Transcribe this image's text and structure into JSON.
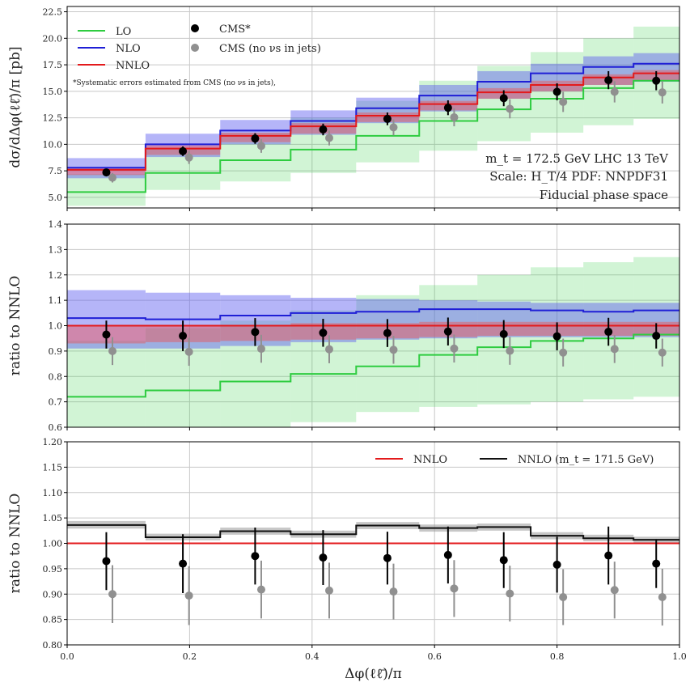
{
  "chart_data": [
    {
      "type": "line",
      "panel": "top",
      "ylabel": "dσ/dΔφ(ℓℓ̄)/π [pb]",
      "ylim": [
        4.0,
        23.0
      ],
      "yticks": [
        5.0,
        7.5,
        10.0,
        12.5,
        15.0,
        17.5,
        20.0,
        22.5
      ],
      "ytick_labels": [
        "5.0",
        "7.5",
        "10.0",
        "12.5",
        "15.0",
        "17.5",
        "20.0",
        "22.5"
      ],
      "grid": true,
      "legend_position": "top-left",
      "legend": {
        "lo": "LO",
        "nlo": "NLO",
        "nnlo": "NNLO",
        "cms_star": "CMS*",
        "cms_nonu": "CMS (no νs in jets)"
      },
      "note": "*Systematic errors estimated from CMS (no νs in jets),",
      "annotations": {
        "line1": "m_t = 172.5 GeV LHC 13 TeV",
        "line2": "Scale: H_T/4 PDF: NNPDF31",
        "line3": "Fiducial phase space"
      },
      "bin_edges": [
        0.0,
        0.128,
        0.25,
        0.365,
        0.472,
        0.575,
        0.67,
        0.757,
        0.843,
        0.925,
        1.0
      ],
      "series": [
        {
          "key": "lo",
          "color": "#2ecc40",
          "band_color": "#2ecc40",
          "values": [
            5.5,
            7.3,
            8.5,
            9.5,
            10.8,
            12.2,
            13.3,
            14.3,
            15.3,
            16.0
          ],
          "band_low": [
            4.2,
            5.7,
            6.5,
            7.3,
            8.3,
            9.4,
            10.3,
            11.1,
            11.8,
            12.4
          ],
          "band_high": [
            7.2,
            9.6,
            11.1,
            12.5,
            14.1,
            16.0,
            17.4,
            18.7,
            20.0,
            21.1
          ]
        },
        {
          "key": "nlo",
          "color": "#1f1fd6",
          "band_color": "#5b5bf0",
          "values": [
            7.8,
            10.0,
            11.3,
            12.2,
            13.4,
            14.6,
            15.9,
            16.7,
            17.3,
            17.6
          ],
          "band_low": [
            6.8,
            8.8,
            10.0,
            10.9,
            12.0,
            13.1,
            14.3,
            15.0,
            15.6,
            15.9
          ],
          "band_high": [
            8.7,
            11.0,
            12.3,
            13.2,
            14.4,
            15.6,
            16.9,
            17.6,
            18.3,
            18.6
          ]
        },
        {
          "key": "nnlo",
          "color": "#e31a1c",
          "band_color": "#f05050",
          "values": [
            7.6,
            9.6,
            10.8,
            11.7,
            12.7,
            13.8,
            14.9,
            15.6,
            16.3,
            16.7
          ],
          "band_low": [
            7.1,
            9.0,
            10.2,
            11.0,
            12.1,
            13.2,
            14.3,
            15.0,
            15.6,
            16.0
          ],
          "band_high": [
            7.8,
            9.9,
            11.1,
            12.0,
            13.0,
            14.1,
            15.3,
            16.0,
            16.6,
            17.0
          ]
        }
      ],
      "points": [
        {
          "key": "cms_star",
          "color": "#000000",
          "x": [
            0.064,
            0.189,
            0.307,
            0.418,
            0.523,
            0.622,
            0.713,
            0.8,
            0.884,
            0.962
          ],
          "y": [
            7.35,
            9.35,
            10.55,
            11.4,
            12.4,
            13.45,
            14.35,
            14.95,
            16.05,
            16.0
          ],
          "err": [
            0.35,
            0.45,
            0.5,
            0.55,
            0.6,
            0.7,
            0.75,
            0.8,
            0.85,
            0.9
          ]
        },
        {
          "key": "cms_nonu",
          "color": "#909090",
          "x": [
            0.074,
            0.199,
            0.317,
            0.428,
            0.533,
            0.632,
            0.723,
            0.81,
            0.894,
            0.972
          ],
          "y": [
            6.85,
            8.75,
            9.85,
            10.6,
            11.6,
            12.55,
            13.35,
            14.0,
            14.95,
            14.9
          ],
          "err": [
            0.45,
            0.6,
            0.65,
            0.7,
            0.75,
            0.85,
            0.9,
            0.95,
            1.0,
            1.05
          ]
        }
      ]
    },
    {
      "type": "line",
      "panel": "middle",
      "ylabel": "ratio to NNLO",
      "ylim": [
        0.6,
        1.4
      ],
      "yticks": [
        0.6,
        0.7,
        0.8,
        0.9,
        1.0,
        1.1,
        1.2,
        1.3,
        1.4
      ],
      "ytick_labels": [
        "0.6",
        "0.7",
        "0.8",
        "0.9",
        "1.0",
        "1.1",
        "1.2",
        "1.3",
        "1.4"
      ],
      "grid": true,
      "bin_edges": [
        0.0,
        0.128,
        0.25,
        0.365,
        0.472,
        0.575,
        0.67,
        0.757,
        0.843,
        0.925,
        1.0
      ],
      "series": [
        {
          "key": "lo",
          "color": "#2ecc40",
          "band_color": "#2ecc40",
          "values": [
            0.72,
            0.745,
            0.78,
            0.81,
            0.84,
            0.885,
            0.915,
            0.94,
            0.95,
            0.965
          ],
          "band_low": [
            0.6,
            0.6,
            0.6,
            0.62,
            0.66,
            0.68,
            0.69,
            0.7,
            0.71,
            0.72
          ],
          "band_high": [
            0.94,
            0.99,
            1.02,
            1.06,
            1.12,
            1.16,
            1.2,
            1.23,
            1.25,
            1.27
          ]
        },
        {
          "key": "nlo",
          "color": "#1f1fd6",
          "band_color": "#5b5bf0",
          "values": [
            1.03,
            1.025,
            1.04,
            1.05,
            1.055,
            1.065,
            1.065,
            1.06,
            1.055,
            1.06
          ],
          "band_low": [
            0.91,
            0.91,
            0.92,
            0.935,
            0.945,
            0.95,
            0.955,
            0.955,
            0.955,
            0.955
          ],
          "band_high": [
            1.14,
            1.13,
            1.12,
            1.11,
            1.105,
            1.1,
            1.095,
            1.09,
            1.09,
            1.09
          ]
        },
        {
          "key": "nnlo",
          "color": "#e31a1c",
          "band_color": "#f05050",
          "values": [
            1.0,
            1.0,
            1.0,
            1.0,
            1.0,
            1.0,
            1.0,
            1.0,
            1.0,
            1.0
          ],
          "band_low": [
            0.93,
            0.935,
            0.94,
            0.945,
            0.95,
            0.955,
            0.96,
            0.96,
            0.96,
            0.96
          ],
          "band_high": [
            1.0,
            1.0,
            1.0,
            1.01,
            1.01,
            1.015,
            1.015,
            1.015,
            1.015,
            1.015
          ]
        }
      ],
      "points": [
        {
          "key": "cms_star",
          "color": "#000000",
          "x": [
            0.064,
            0.189,
            0.307,
            0.418,
            0.523,
            0.622,
            0.713,
            0.8,
            0.884,
            0.962
          ],
          "y": [
            0.965,
            0.96,
            0.975,
            0.972,
            0.971,
            0.977,
            0.967,
            0.958,
            0.976,
            0.96
          ],
          "err": [
            0.055,
            0.06,
            0.055,
            0.055,
            0.055,
            0.055,
            0.055,
            0.055,
            0.055,
            0.05
          ]
        },
        {
          "key": "cms_nonu",
          "color": "#909090",
          "x": [
            0.074,
            0.199,
            0.317,
            0.428,
            0.533,
            0.632,
            0.723,
            0.81,
            0.894,
            0.972
          ],
          "y": [
            0.9,
            0.897,
            0.909,
            0.907,
            0.905,
            0.91,
            0.901,
            0.894,
            0.908,
            0.894
          ],
          "err": [
            0.055,
            0.055,
            0.055,
            0.055,
            0.055,
            0.055,
            0.055,
            0.055,
            0.055,
            0.055
          ]
        }
      ]
    },
    {
      "type": "line",
      "panel": "bottom",
      "ylabel": "ratio to NNLO",
      "xlabel": "Δφ(ℓℓ̄)/π",
      "xlim": [
        0.0,
        1.0
      ],
      "xticks": [
        0.0,
        0.2,
        0.4,
        0.6,
        0.8,
        1.0
      ],
      "xtick_labels": [
        "0.0",
        "0.2",
        "0.4",
        "0.6",
        "0.8",
        "1.0"
      ],
      "ylim": [
        0.8,
        1.2
      ],
      "yticks": [
        0.8,
        0.85,
        0.9,
        0.95,
        1.0,
        1.05,
        1.1,
        1.15,
        1.2
      ],
      "ytick_labels": [
        "0.80",
        "0.85",
        "0.90",
        "0.95",
        "1.00",
        "1.05",
        "1.10",
        "1.15",
        "1.20"
      ],
      "grid": true,
      "legend_position": "top-right",
      "legend": {
        "nnlo": "NNLO",
        "nnlo_mt": "NNLO (m_t = 171.5 GeV)"
      },
      "bin_edges": [
        0.0,
        0.128,
        0.25,
        0.365,
        0.472,
        0.575,
        0.67,
        0.757,
        0.843,
        0.925,
        1.0
      ],
      "series": [
        {
          "key": "nnlo",
          "color": "#e31a1c",
          "values": [
            1.0,
            1.0,
            1.0,
            1.0,
            1.0,
            1.0,
            1.0,
            1.0,
            1.0,
            1.0
          ]
        },
        {
          "key": "nnlo_mt",
          "color": "#111111",
          "band_color": "#999999",
          "values": [
            1.036,
            1.012,
            1.024,
            1.018,
            1.035,
            1.03,
            1.032,
            1.015,
            1.01,
            1.007
          ],
          "band_low": [
            1.029,
            1.006,
            1.017,
            1.011,
            1.028,
            1.023,
            1.025,
            1.008,
            1.004,
            1.001
          ],
          "band_high": [
            1.044,
            1.019,
            1.031,
            1.025,
            1.042,
            1.037,
            1.039,
            1.022,
            1.017,
            1.013
          ]
        }
      ],
      "points": [
        {
          "key": "cms_star",
          "color": "#000000",
          "x": [
            0.064,
            0.189,
            0.307,
            0.418,
            0.523,
            0.622,
            0.713,
            0.8,
            0.884,
            0.962
          ],
          "y": [
            0.965,
            0.96,
            0.975,
            0.972,
            0.971,
            0.977,
            0.967,
            0.958,
            0.976,
            0.96
          ],
          "err": [
            0.057,
            0.058,
            0.056,
            0.054,
            0.052,
            0.056,
            0.055,
            0.055,
            0.057,
            0.048
          ]
        },
        {
          "key": "cms_nonu",
          "color": "#909090",
          "x": [
            0.074,
            0.199,
            0.317,
            0.428,
            0.533,
            0.632,
            0.723,
            0.81,
            0.894,
            0.972
          ],
          "y": [
            0.9,
            0.897,
            0.909,
            0.907,
            0.905,
            0.911,
            0.901,
            0.894,
            0.908,
            0.894
          ],
          "err": [
            0.057,
            0.058,
            0.057,
            0.055,
            0.055,
            0.056,
            0.055,
            0.055,
            0.056,
            0.056
          ]
        }
      ]
    }
  ]
}
